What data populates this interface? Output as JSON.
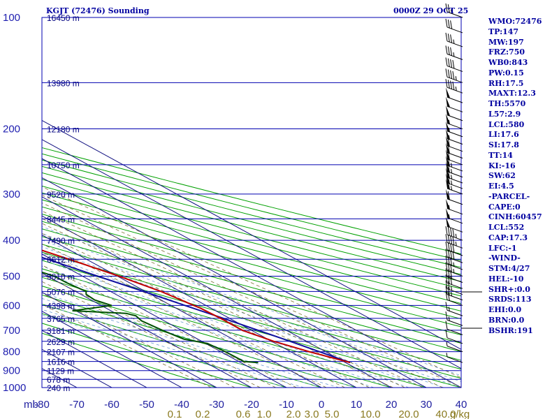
{
  "title": "KGJT (72476) Sounding",
  "valid_time": "0000Z 29 OCT 25",
  "indices": [
    "WMO:72476",
    "TP:147",
    "MW:197",
    "FRZ:750",
    "WB0:843",
    "PW:0.15",
    "RH:17.5",
    "MAXT:12.3",
    "TH:5570",
    "L57:2.9",
    "LCL:580",
    "LI:17.6",
    "SI:17.8",
    "TT:14",
    "KI:-16",
    "SW:62",
    "EI:4.5",
    "-PARCEL-",
    "CAPE:0",
    "CINH:60457",
    "LCL:552",
    "CAP:17.3",
    "LFC:-1",
    "-WIND-",
    "STM:4/27",
    "HEL:-10",
    "SHR+:0.0",
    "SRDS:113",
    "EHI:0.0",
    "BRN:0.0",
    "BSHR:191"
  ],
  "chart_data": {
    "type": "line",
    "pressure_axis_label": "mb",
    "temperature_ticks": [
      -80,
      -70,
      -60,
      -50,
      -40,
      -30,
      -20,
      -10,
      0,
      10,
      20,
      30,
      40
    ],
    "pressure_labels": [
      100,
      200,
      300,
      400,
      500,
      600,
      700,
      800,
      900,
      1000
    ],
    "pressure_gridlines": [
      100,
      150,
      200,
      250,
      300,
      350,
      400,
      450,
      500,
      550,
      600,
      650,
      700,
      750,
      800,
      850,
      900,
      950,
      1000
    ],
    "height_labels": [
      {
        "p": 100,
        "text": "16450 m"
      },
      {
        "p": 150,
        "text": "13980 m"
      },
      {
        "p": 200,
        "text": "12180 m"
      },
      {
        "p": 250,
        "text": "10750 m"
      },
      {
        "p": 300,
        "text": "9520 m"
      },
      {
        "p": 350,
        "text": "8445 m"
      },
      {
        "p": 400,
        "text": "7490 m"
      },
      {
        "p": 450,
        "text": "6612 m"
      },
      {
        "p": 500,
        "text": "5810 m"
      },
      {
        "p": 550,
        "text": "5076 m"
      },
      {
        "p": 600,
        "text": "4398 m"
      },
      {
        "p": 650,
        "text": "3765 m"
      },
      {
        "p": 700,
        "text": "3181 m"
      },
      {
        "p": 750,
        "text": "2629 m"
      },
      {
        "p": 800,
        "text": "2107 m"
      },
      {
        "p": 850,
        "text": "1616 m"
      },
      {
        "p": 900,
        "text": "1129 m"
      },
      {
        "p": 950,
        "text": "678 m"
      },
      {
        "p": 1000,
        "text": "240 m"
      }
    ],
    "mixing_ratio_labels": [
      "0.1",
      "0.2",
      "0.6",
      "1.0",
      "2.0",
      "3.0",
      "5.0",
      "10.0",
      "20.0",
      "40.0",
      "g/kg"
    ],
    "temperature": [
      [
        856,
        11.3
      ],
      [
        800,
        5.3
      ],
      [
        750,
        0.6
      ],
      [
        700,
        -2.6
      ],
      [
        650,
        -2.6
      ],
      [
        610,
        -3.0
      ],
      [
        600,
        -3.5
      ],
      [
        550,
        -5.5
      ],
      [
        500,
        -9.5
      ],
      [
        450,
        -15.0
      ],
      [
        400,
        -21.5
      ],
      [
        350,
        -28.5
      ],
      [
        300,
        -35.5
      ],
      [
        250,
        -43.0
      ],
      [
        225,
        -47.5
      ],
      [
        200,
        -51.5
      ],
      [
        175,
        -55.5
      ],
      [
        150,
        -58.0
      ],
      [
        130,
        -60.0
      ],
      [
        115,
        -61.5
      ],
      [
        100,
        -62.0
      ]
    ],
    "dewpoint": [
      [
        856,
        -15.0
      ],
      [
        850,
        -18.5
      ],
      [
        800,
        -18.7
      ],
      [
        760,
        -19.5
      ],
      [
        740,
        -24.0
      ],
      [
        700,
        -25.5
      ],
      [
        660,
        -26.5
      ],
      [
        640,
        -25.5
      ],
      [
        630,
        -27.0
      ],
      [
        620,
        -41.0
      ],
      [
        600,
        -27.0
      ],
      [
        580,
        -29.0
      ],
      [
        560,
        -28.5
      ],
      [
        550,
        -27.0
      ],
      [
        520,
        -28.0
      ],
      [
        500,
        -28.0
      ],
      [
        470,
        -32.0
      ],
      [
        450,
        -35.0
      ],
      [
        420,
        -37.5
      ],
      [
        400,
        -38.5
      ],
      [
        380,
        -39.5
      ],
      [
        370,
        -41.0
      ],
      [
        350,
        -41.5
      ],
      [
        330,
        -40.0
      ],
      [
        300,
        -44.0
      ],
      [
        280,
        -46.0
      ],
      [
        260,
        -48.5
      ],
      [
        250,
        -49.0
      ],
      [
        230,
        -53.0
      ],
      [
        200,
        -58.0
      ],
      [
        170,
        -61.0
      ],
      [
        150,
        -64.0
      ]
    ],
    "parcel": [
      [
        856,
        11.3
      ],
      [
        800,
        8.2
      ],
      [
        750,
        5.3
      ],
      [
        700,
        1.9
      ],
      [
        650,
        -1.8
      ],
      [
        600,
        -6.0
      ],
      [
        550,
        -10.5
      ],
      [
        500,
        -15.6
      ],
      [
        450,
        -21.2
      ],
      [
        400,
        -27.8
      ],
      [
        350,
        -35.3
      ],
      [
        300,
        -43.8
      ],
      [
        250,
        -53.8
      ],
      [
        220,
        -60.3
      ]
    ],
    "wind_barbs": [
      [
        100,
        "w",
        25
      ],
      [
        110,
        "w",
        30
      ],
      [
        120,
        "w",
        35
      ],
      [
        130,
        "w",
        35
      ],
      [
        140,
        "w",
        40
      ],
      [
        150,
        "w",
        45
      ],
      [
        160,
        "w",
        45
      ],
      [
        170,
        "w",
        50
      ],
      [
        180,
        "w",
        50
      ],
      [
        190,
        "w",
        50
      ],
      [
        200,
        "w",
        55
      ],
      [
        210,
        "w",
        55
      ],
      [
        220,
        "w",
        55
      ],
      [
        230,
        "w",
        60
      ],
      [
        240,
        "w",
        60
      ],
      [
        250,
        "w",
        60
      ],
      [
        260,
        "w",
        65
      ],
      [
        270,
        "w",
        65
      ],
      [
        280,
        "w",
        65
      ],
      [
        290,
        "w",
        65
      ],
      [
        300,
        "w",
        65
      ],
      [
        320,
        "w",
        60
      ],
      [
        340,
        "w",
        55
      ],
      [
        360,
        "w",
        55
      ],
      [
        380,
        "w",
        50
      ],
      [
        400,
        "w",
        45
      ],
      [
        420,
        "w",
        45
      ],
      [
        440,
        "w",
        40
      ],
      [
        460,
        "w",
        40
      ],
      [
        480,
        "w",
        35
      ],
      [
        500,
        "w",
        35
      ],
      [
        520,
        "w",
        30
      ],
      [
        540,
        "w",
        30
      ],
      [
        560,
        "w",
        25
      ],
      [
        580,
        "w",
        25
      ],
      [
        600,
        "w",
        20
      ],
      [
        640,
        "w",
        15
      ],
      [
        680,
        "w",
        15
      ],
      [
        720,
        "w",
        10
      ],
      [
        760,
        "w",
        10
      ],
      [
        800,
        "w",
        5
      ],
      [
        856,
        "w",
        5
      ]
    ]
  }
}
